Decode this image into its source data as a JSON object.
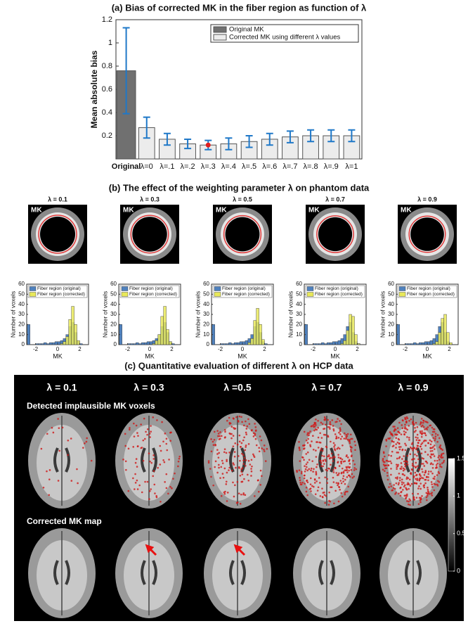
{
  "chart_data": [
    {
      "type": "bar",
      "title": "(a) Bias of corrected MK in the fiber region as function of λ",
      "y_label": "Mean absolute bias",
      "categories": [
        "Original",
        "λ=0",
        "λ=.1",
        "λ=.2",
        "λ=.3",
        "λ=.4",
        "λ=.5",
        "λ=.6",
        "λ=.7",
        "λ=.8",
        "λ=.9",
        "λ=1"
      ],
      "series": [
        {
          "name": "Original MK",
          "color": "#707070",
          "values": [
            0.76,
            null,
            null,
            null,
            null,
            null,
            null,
            null,
            null,
            null,
            null,
            null
          ],
          "errors": [
            0.37,
            null,
            null,
            null,
            null,
            null,
            null,
            null,
            null,
            null,
            null,
            null
          ]
        },
        {
          "name": "Corrected MK using different λ values",
          "color": "#ececec",
          "values": [
            null,
            0.27,
            0.17,
            0.13,
            0.12,
            0.13,
            0.15,
            0.17,
            0.19,
            0.2,
            0.2,
            0.2
          ],
          "errors": [
            null,
            0.09,
            0.05,
            0.04,
            0.04,
            0.05,
            0.05,
            0.05,
            0.05,
            0.05,
            0.05,
            0.05
          ]
        }
      ],
      "error_color": "#1f78c8",
      "highlight_index": 4,
      "highlight_color": "#e01e1e",
      "ylim": [
        0,
        1.2
      ],
      "yticks": [
        0.2,
        0.4,
        0.6,
        0.8,
        1,
        1.2
      ],
      "legend": "upper right"
    },
    {
      "type": "histogram",
      "x_label": "MK",
      "y_label": "Number of voxels",
      "bins": [
        -2.75,
        -2.5,
        -2.25,
        -2,
        -1.75,
        -1.5,
        -1.25,
        -1,
        -0.75,
        -0.5,
        -0.25,
        0,
        0.25,
        0.5,
        0.75,
        1,
        1.25,
        1.5,
        1.75,
        2,
        2.25
      ],
      "series": [
        {
          "name": "Fiber region (original)",
          "color": "#4f81bd",
          "values": [
            20,
            0,
            0,
            1,
            1,
            1,
            2,
            1,
            2,
            2,
            3,
            3,
            4,
            6,
            10,
            18,
            22,
            12,
            3,
            1
          ]
        },
        {
          "name": "Fiber region (corrected)",
          "color": "#e8e85a",
          "values": [
            0,
            0,
            0,
            0,
            0,
            0,
            0,
            0,
            0,
            0,
            0,
            0,
            1,
            3,
            8,
            25,
            38,
            20,
            4,
            0
          ]
        }
      ],
      "xlim": [
        -2.8,
        2.8
      ],
      "xticks": [
        -2,
        0,
        2
      ],
      "ylim": [
        0,
        60
      ],
      "yticks": [
        0,
        10,
        20,
        30,
        40,
        50,
        60
      ]
    },
    {
      "type": "histogram",
      "x_label": "MK",
      "y_label": "Number of voxels",
      "bins": [
        -2.75,
        -2.5,
        -2.25,
        -2,
        -1.75,
        -1.5,
        -1.25,
        -1,
        -0.75,
        -0.5,
        -0.25,
        0,
        0.25,
        0.5,
        0.75,
        1,
        1.25,
        1.5,
        1.75,
        2,
        2.25
      ],
      "series": [
        {
          "name": "Fiber region (original)",
          "color": "#4f81bd",
          "values": [
            20,
            0,
            0,
            1,
            1,
            1,
            2,
            1,
            2,
            2,
            3,
            3,
            4,
            6,
            10,
            18,
            22,
            12,
            3,
            1
          ]
        },
        {
          "name": "Fiber region (corrected)",
          "color": "#e8e85a",
          "values": [
            0,
            0,
            0,
            0,
            0,
            0,
            0,
            0,
            0,
            0,
            0,
            0,
            1,
            4,
            10,
            28,
            38,
            15,
            3,
            0
          ]
        }
      ],
      "xlim": [
        -2.8,
        2.8
      ],
      "xticks": [
        -2,
        0,
        2
      ],
      "ylim": [
        0,
        60
      ],
      "yticks": [
        0,
        10,
        20,
        30,
        40,
        50,
        60
      ]
    },
    {
      "type": "histogram",
      "x_label": "MK",
      "y_label": "Number of voxels",
      "bins": [
        -2.75,
        -2.5,
        -2.25,
        -2,
        -1.75,
        -1.5,
        -1.25,
        -1,
        -0.75,
        -0.5,
        -0.25,
        0,
        0.25,
        0.5,
        0.75,
        1,
        1.25,
        1.5,
        1.75,
        2,
        2.25
      ],
      "series": [
        {
          "name": "Fiber region (original)",
          "color": "#4f81bd",
          "values": [
            20,
            0,
            0,
            1,
            1,
            1,
            2,
            1,
            2,
            2,
            3,
            3,
            4,
            6,
            10,
            18,
            22,
            12,
            3,
            1
          ]
        },
        {
          "name": "Fiber region (corrected)",
          "color": "#e8e85a",
          "values": [
            0,
            0,
            0,
            0,
            0,
            0,
            0,
            0,
            0,
            0,
            0,
            0,
            0,
            2,
            6,
            24,
            36,
            20,
            5,
            0
          ]
        }
      ],
      "xlim": [
        -2.8,
        2.8
      ],
      "xticks": [
        -2,
        0,
        2
      ],
      "ylim": [
        0,
        60
      ],
      "yticks": [
        0,
        10,
        20,
        30,
        40,
        50,
        60
      ]
    },
    {
      "type": "histogram",
      "x_label": "MK",
      "y_label": "Number of voxels",
      "bins": [
        -2.75,
        -2.5,
        -2.25,
        -2,
        -1.75,
        -1.5,
        -1.25,
        -1,
        -0.75,
        -0.5,
        -0.25,
        0,
        0.25,
        0.5,
        0.75,
        1,
        1.25,
        1.5,
        1.75,
        2,
        2.25
      ],
      "series": [
        {
          "name": "Fiber region (original)",
          "color": "#4f81bd",
          "values": [
            20,
            0,
            0,
            1,
            1,
            1,
            2,
            1,
            2,
            2,
            3,
            3,
            4,
            6,
            10,
            18,
            22,
            12,
            3,
            1
          ]
        },
        {
          "name": "Fiber region (corrected)",
          "color": "#e8e85a",
          "values": [
            0,
            0,
            0,
            0,
            0,
            0,
            0,
            0,
            0,
            0,
            0,
            0,
            0,
            1,
            4,
            14,
            30,
            28,
            10,
            1
          ]
        }
      ],
      "xlim": [
        -2.8,
        2.8
      ],
      "xticks": [
        -2,
        0,
        2
      ],
      "ylim": [
        0,
        60
      ],
      "yticks": [
        0,
        10,
        20,
        30,
        40,
        50,
        60
      ]
    },
    {
      "type": "histogram",
      "x_label": "MK",
      "y_label": "Number of voxels",
      "bins": [
        -2.75,
        -2.5,
        -2.25,
        -2,
        -1.75,
        -1.5,
        -1.25,
        -1,
        -0.75,
        -0.5,
        -0.25,
        0,
        0.25,
        0.5,
        0.75,
        1,
        1.25,
        1.5,
        1.75,
        2,
        2.25
      ],
      "series": [
        {
          "name": "Fiber region (original)",
          "color": "#4f81bd",
          "values": [
            20,
            0,
            0,
            1,
            1,
            1,
            2,
            1,
            2,
            2,
            3,
            3,
            4,
            6,
            10,
            18,
            22,
            12,
            3,
            1
          ]
        },
        {
          "name": "Fiber region (corrected)",
          "color": "#e8e85a",
          "values": [
            0,
            0,
            0,
            0,
            0,
            0,
            0,
            0,
            0,
            0,
            0,
            0,
            0,
            1,
            3,
            12,
            26,
            30,
            12,
            2
          ]
        }
      ],
      "xlim": [
        -2.8,
        2.8
      ],
      "xticks": [
        -2,
        0,
        2
      ],
      "ylim": [
        0,
        60
      ],
      "yticks": [
        0,
        10,
        20,
        30,
        40,
        50,
        60
      ]
    }
  ],
  "panel_b": {
    "title": "(b) The effect of the weighting parameter λ on phantom data",
    "lambda_labels": [
      "λ = 0.1",
      "λ = 0.3",
      "λ = 0.5",
      "λ = 0.7",
      "λ = 0.9"
    ],
    "image_label": "MK"
  },
  "panel_c": {
    "title": "(c) Quantitative evaluation of different λ on HCP data",
    "lambda_labels": [
      "λ = 0.1",
      "λ = 0.3",
      "λ =0.5",
      "λ = 0.7",
      "λ = 0.9"
    ],
    "row_labels": [
      "Detected implausible MK voxels",
      "Corrected MK map"
    ],
    "colorbar": {
      "lim": [
        0,
        1.5
      ],
      "ticks": [
        0,
        0.5,
        1,
        1.5
      ]
    }
  }
}
